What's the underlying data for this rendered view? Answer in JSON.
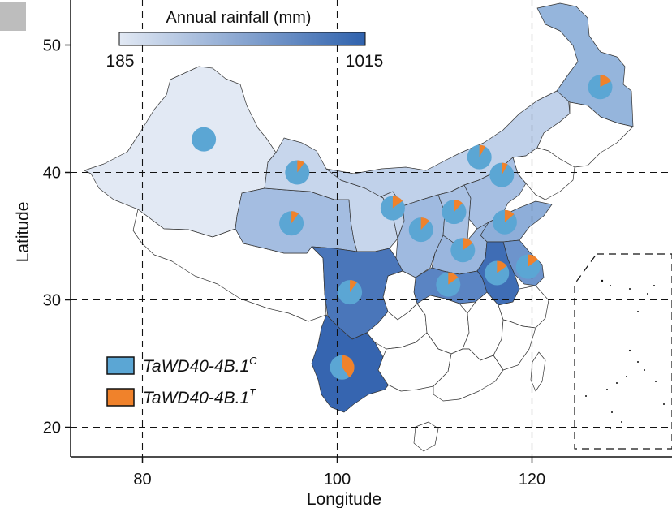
{
  "colorbar": {
    "title": "Annual rainfall (mm)",
    "min_label": "185",
    "max_label": "1015",
    "min_color": "#e2e9f4",
    "max_color": "#2f62ad"
  },
  "axes": {
    "xlabel": "Longitude",
    "ylabel": "Latitude",
    "xticks": [
      "80",
      "100",
      "120"
    ],
    "yticks": [
      "20",
      "30",
      "40",
      "50"
    ],
    "grid": "dashed"
  },
  "legend": {
    "items": [
      {
        "base": "TaWD40-4B.1",
        "sup": "C",
        "color": "#5ba6d4"
      },
      {
        "base": "TaWD40-4B.1",
        "sup": "T",
        "color": "#f0822b"
      }
    ]
  },
  "chart_data": {
    "type": "map-pie",
    "x_range": [
      73,
      134
    ],
    "y_range": [
      17.5,
      53.5
    ],
    "xticks": [
      80,
      100,
      120
    ],
    "yticks": [
      20,
      30,
      40,
      50
    ],
    "series_colors": {
      "C": "#5ba6d4",
      "T": "#f0822b"
    },
    "pies": [
      {
        "lon": 86.3,
        "lat": 42.6,
        "T_fraction": 0.0
      },
      {
        "lon": 95.9,
        "lat": 40.0,
        "T_fraction": 0.1
      },
      {
        "lon": 95.3,
        "lat": 36.0,
        "T_fraction": 0.1
      },
      {
        "lon": 105.7,
        "lat": 37.2,
        "T_fraction": 0.15
      },
      {
        "lon": 108.6,
        "lat": 35.5,
        "T_fraction": 0.12
      },
      {
        "lon": 112.0,
        "lat": 36.9,
        "T_fraction": 0.12
      },
      {
        "lon": 114.6,
        "lat": 41.2,
        "T_fraction": 0.08
      },
      {
        "lon": 116.9,
        "lat": 39.8,
        "T_fraction": 0.08
      },
      {
        "lon": 117.2,
        "lat": 36.1,
        "T_fraction": 0.14
      },
      {
        "lon": 112.9,
        "lat": 33.9,
        "T_fraction": 0.15
      },
      {
        "lon": 116.4,
        "lat": 32.1,
        "T_fraction": 0.15
      },
      {
        "lon": 119.6,
        "lat": 32.6,
        "T_fraction": 0.15
      },
      {
        "lon": 111.4,
        "lat": 31.2,
        "T_fraction": 0.15
      },
      {
        "lon": 101.3,
        "lat": 30.6,
        "T_fraction": 0.1
      },
      {
        "lon": 100.5,
        "lat": 24.7,
        "T_fraction": 0.4
      },
      {
        "lon": 127.0,
        "lat": 46.7,
        "T_fraction": 0.17
      }
    ]
  }
}
